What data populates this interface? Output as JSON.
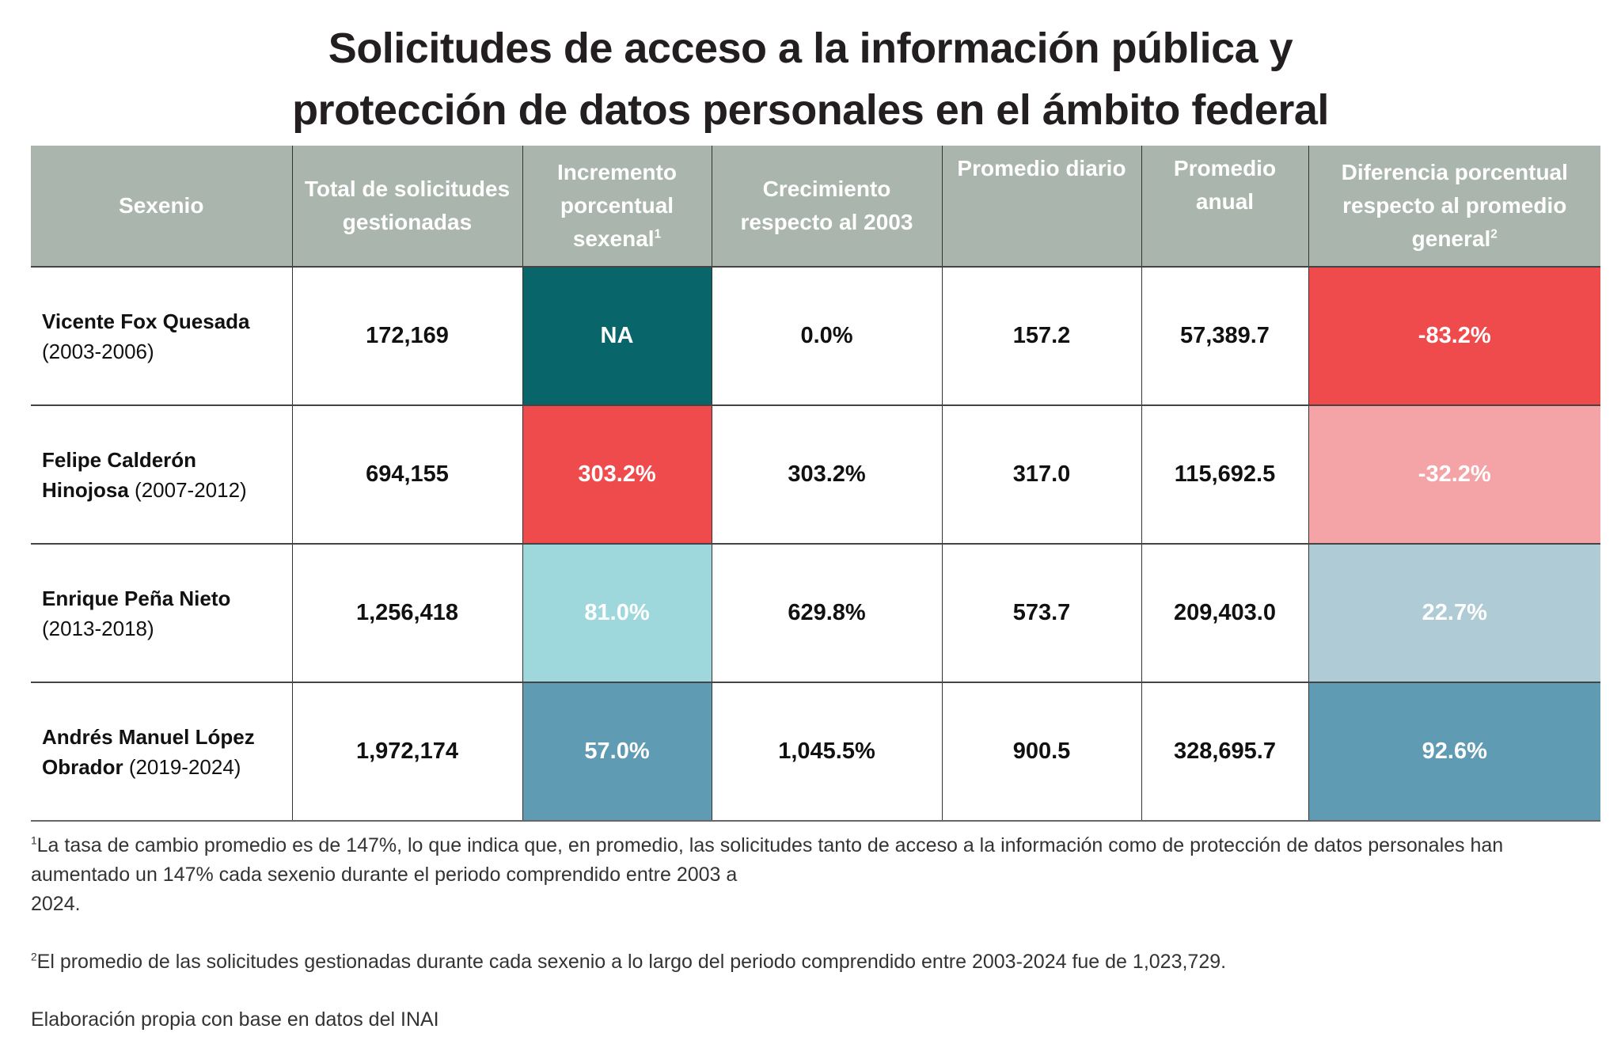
{
  "title": {
    "line1": "Solicitudes de acceso a la información pública y",
    "line2": "protección de datos personales en el ámbito federal"
  },
  "colors": {
    "header_bg": "#a9b5ad",
    "dark_teal": "#08666b",
    "red": "#ef4b4d",
    "pink": "#f4a4a6",
    "light_cyan": "#9fd8dc",
    "light_blue": "#afcbd6",
    "steel_blue": "#5f9bb3"
  },
  "table": {
    "headers": [
      {
        "label": "Sexenio",
        "sup": ""
      },
      {
        "label": "Total de solicitudes gestionadas",
        "sup": ""
      },
      {
        "label": "Incremento porcentual sexenal",
        "sup": "1"
      },
      {
        "label": "Crecimiento respecto al 2003",
        "sup": ""
      },
      {
        "label": "Promedio diario",
        "sup": ""
      },
      {
        "label": "Promedio anual",
        "sup": ""
      },
      {
        "label": "Diferencia porcentual respecto al promedio general",
        "sup": "2"
      }
    ],
    "rows": [
      {
        "name": "Vicente Fox Quesada",
        "years": "(2003-2006)",
        "total": "172,169",
        "incremento": "NA",
        "incremento_color": "#08666b",
        "crecimiento": "0.0%",
        "diario": "157.2",
        "anual": "57,389.7",
        "diferencia": "-83.2%",
        "diferencia_color": "#ef4b4d"
      },
      {
        "name": "Felipe Calderón Hinojosa",
        "years": "(2007-2012)",
        "total": "694,155",
        "incremento": "303.2%",
        "incremento_color": "#ef4b4d",
        "crecimiento": "303.2%",
        "diario": "317.0",
        "anual": "115,692.5",
        "diferencia": "-32.2%",
        "diferencia_color": "#f4a4a6"
      },
      {
        "name": "Enrique Peña Nieto",
        "years": "(2013-2018)",
        "total": "1,256,418",
        "incremento": "81.0%",
        "incremento_color": "#9fd8dc",
        "crecimiento": "629.8%",
        "diario": "573.7",
        "anual": "209,403.0",
        "diferencia": "22.7%",
        "diferencia_color": "#afcbd6"
      },
      {
        "name": "Andrés Manuel López Obrador",
        "years": "(2019-2024)",
        "total": "1,972,174",
        "incremento": "57.0%",
        "incremento_color": "#5f9bb3",
        "crecimiento": "1,045.5%",
        "diario": "900.5",
        "anual": "328,695.7",
        "diferencia": "92.6%",
        "diferencia_color": "#5f9bb3"
      }
    ]
  },
  "notes": {
    "note1_sup": "1",
    "note1_a": "La tasa de cambio promedio es de 147%, lo que indica que, en promedio, las solicitudes tanto de acceso a la información como de protección de datos personales han aumentado un 147% cada sexenio durante el periodo comprendido entre 2003 a",
    "note1_b": "2024.",
    "note2_sup": "2",
    "note2": "El promedio de las solicitudes gestionadas durante cada sexenio a lo largo del periodo comprendido entre 2003-2024 fue de 1,023,729.",
    "source": "Elaboración propia con base en datos del INAI"
  }
}
